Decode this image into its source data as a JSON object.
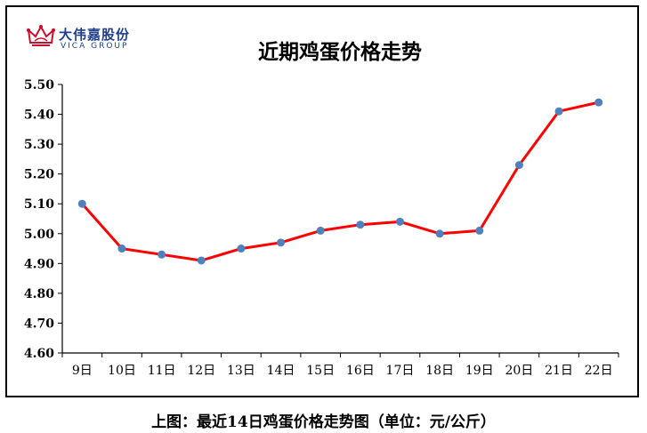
{
  "logo": {
    "name_cn": "大伟嘉股份",
    "name_en": "VICA GROUP",
    "crown_color": "#c8102e"
  },
  "caption": "上图：最近14日鸡蛋价格走势图（单位：元/公斤）",
  "chart_data": {
    "type": "line",
    "title": "近期鸡蛋价格走势",
    "xlabel": "",
    "ylabel": "",
    "categories": [
      "9日",
      "10日",
      "11日",
      "12日",
      "13日",
      "14日",
      "15日",
      "16日",
      "17日",
      "18日",
      "19日",
      "20日",
      "21日",
      "22日"
    ],
    "series": [
      {
        "values": [
          5.1,
          4.95,
          4.93,
          4.91,
          4.95,
          4.97,
          5.01,
          5.03,
          5.04,
          5.0,
          5.01,
          5.23,
          5.41,
          5.44
        ],
        "line_color": "#ff0000",
        "marker_color": "#4f81bd"
      }
    ],
    "ylim": [
      4.6,
      5.5
    ],
    "yticks": [
      "4.60",
      "4.70",
      "4.80",
      "4.90",
      "5.00",
      "5.10",
      "5.20",
      "5.30",
      "5.40",
      "5.50"
    ],
    "grid": false,
    "legend": "none"
  }
}
